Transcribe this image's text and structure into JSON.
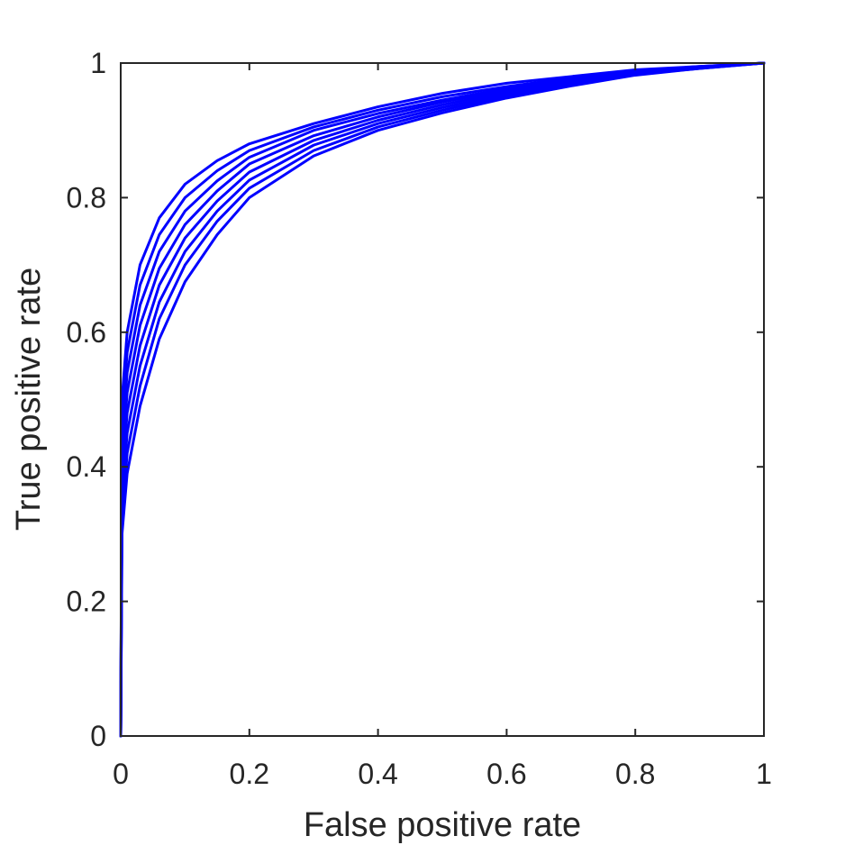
{
  "chart_data": {
    "type": "line",
    "title": "",
    "xlabel": "False positive rate",
    "ylabel": "True positive rate",
    "xlim": [
      0,
      1
    ],
    "ylim": [
      0,
      1
    ],
    "xticks": [
      0,
      0.2,
      0.4,
      0.6,
      0.8,
      1
    ],
    "yticks": [
      0,
      0.2,
      0.4,
      0.6,
      0.8,
      1
    ],
    "xtick_labels": [
      "0",
      "0.2",
      "0.4",
      "0.6",
      "0.8",
      "1"
    ],
    "ytick_labels": [
      "0",
      "0.2",
      "0.4",
      "0.6",
      "0.8",
      "1"
    ],
    "grid": false,
    "legend": "none",
    "line_color": "#0000ff",
    "axis_color": "#262626",
    "series": [
      {
        "x": [
          0,
          0.002,
          0.01,
          0.03,
          0.06,
          0.1,
          0.15,
          0.2,
          0.3,
          0.4,
          0.5,
          0.6,
          0.7,
          0.8,
          0.9,
          1
        ],
        "y": [
          0,
          0.5,
          0.6,
          0.7,
          0.77,
          0.82,
          0.855,
          0.88,
          0.91,
          0.935,
          0.955,
          0.97,
          0.98,
          0.99,
          0.995,
          1
        ]
      },
      {
        "x": [
          0,
          0.002,
          0.01,
          0.03,
          0.06,
          0.1,
          0.15,
          0.2,
          0.3,
          0.4,
          0.5,
          0.6,
          0.7,
          0.8,
          0.9,
          1
        ],
        "y": [
          0,
          0.47,
          0.57,
          0.67,
          0.745,
          0.8,
          0.84,
          0.87,
          0.905,
          0.93,
          0.95,
          0.965,
          0.978,
          0.988,
          0.995,
          1
        ]
      },
      {
        "x": [
          0,
          0.002,
          0.01,
          0.03,
          0.06,
          0.1,
          0.15,
          0.2,
          0.3,
          0.4,
          0.5,
          0.6,
          0.7,
          0.8,
          0.9,
          1
        ],
        "y": [
          0,
          0.44,
          0.54,
          0.64,
          0.72,
          0.78,
          0.825,
          0.86,
          0.9,
          0.925,
          0.945,
          0.962,
          0.976,
          0.987,
          0.994,
          1
        ]
      },
      {
        "x": [
          0,
          0.002,
          0.01,
          0.03,
          0.06,
          0.1,
          0.15,
          0.2,
          0.3,
          0.4,
          0.5,
          0.6,
          0.7,
          0.8,
          0.9,
          1
        ],
        "y": [
          0,
          0.41,
          0.51,
          0.61,
          0.695,
          0.76,
          0.81,
          0.85,
          0.892,
          0.92,
          0.942,
          0.96,
          0.974,
          0.986,
          0.994,
          1
        ]
      },
      {
        "x": [
          0,
          0.002,
          0.01,
          0.03,
          0.06,
          0.1,
          0.15,
          0.2,
          0.3,
          0.4,
          0.5,
          0.6,
          0.7,
          0.8,
          0.9,
          1
        ],
        "y": [
          0,
          0.38,
          0.48,
          0.58,
          0.67,
          0.74,
          0.795,
          0.838,
          0.885,
          0.915,
          0.938,
          0.957,
          0.972,
          0.985,
          0.993,
          1
        ]
      },
      {
        "x": [
          0,
          0.002,
          0.01,
          0.03,
          0.06,
          0.1,
          0.15,
          0.2,
          0.3,
          0.4,
          0.5,
          0.6,
          0.7,
          0.8,
          0.9,
          1
        ],
        "y": [
          0,
          0.35,
          0.45,
          0.55,
          0.645,
          0.72,
          0.78,
          0.826,
          0.878,
          0.91,
          0.934,
          0.954,
          0.97,
          0.984,
          0.993,
          1
        ]
      },
      {
        "x": [
          0,
          0.002,
          0.01,
          0.03,
          0.06,
          0.1,
          0.15,
          0.2,
          0.3,
          0.4,
          0.5,
          0.6,
          0.7,
          0.8,
          0.9,
          1
        ],
        "y": [
          0,
          0.32,
          0.42,
          0.52,
          0.62,
          0.7,
          0.765,
          0.814,
          0.87,
          0.905,
          0.93,
          0.951,
          0.968,
          0.983,
          0.992,
          1
        ]
      },
      {
        "x": [
          0,
          0.002,
          0.01,
          0.03,
          0.06,
          0.1,
          0.15,
          0.2,
          0.3,
          0.4,
          0.5,
          0.6,
          0.7,
          0.8,
          0.9,
          1
        ],
        "y": [
          0,
          0.3,
          0.39,
          0.49,
          0.59,
          0.675,
          0.745,
          0.8,
          0.862,
          0.9,
          0.926,
          0.948,
          0.966,
          0.982,
          0.992,
          1
        ]
      }
    ]
  }
}
